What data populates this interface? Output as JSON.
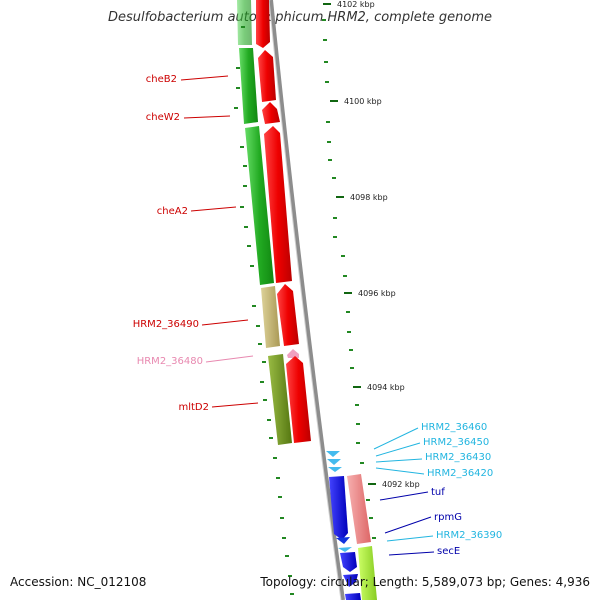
{
  "title": "Desulfobacterium autotrophicum HRM2, complete genome",
  "footer": {
    "accession": "Accession: NC_012108",
    "topology": "Topology: circular; Length: 5,589,073 bp; Genes: 4,936"
  },
  "ticks": [
    {
      "label": "4102 kbp"
    },
    {
      "label": "4100 kbp"
    },
    {
      "label": "4098 kbp"
    },
    {
      "label": "4096 kbp"
    },
    {
      "label": "4094 kbp"
    },
    {
      "label": "4092 kbp"
    }
  ],
  "genes_left": [
    {
      "name": "cheB2",
      "color": "#cc0000"
    },
    {
      "name": "cheW2",
      "color": "#cc0000"
    },
    {
      "name": "cheA2",
      "color": "#cc0000"
    },
    {
      "name": "HRM2_36490",
      "color": "#cc0000"
    },
    {
      "name": "HRM2_36480",
      "color": "#e889b0"
    },
    {
      "name": "mltD2",
      "color": "#cc0000"
    }
  ],
  "genes_right": [
    {
      "name": "HRM2_36460",
      "color": "#22b5e0"
    },
    {
      "name": "HRM2_36450",
      "color": "#22b5e0"
    },
    {
      "name": "HRM2_36430",
      "color": "#22b5e0"
    },
    {
      "name": "HRM2_36420",
      "color": "#22b5e0"
    },
    {
      "name": "tuf",
      "color": "#0000aa"
    },
    {
      "name": "rpmG",
      "color": "#0000aa"
    },
    {
      "name": "HRM2_36390",
      "color": "#22b5e0"
    },
    {
      "name": "secE",
      "color": "#0000aa"
    }
  ],
  "colors": {
    "forward_cds": "#ee1111",
    "reverse_cds": "#1111dd",
    "cog_green": "#33bb33",
    "cog_khaki": "#c8bb77",
    "cog_olive": "#7a9a2a",
    "cog_salmon": "#ee8888",
    "backbone": "#888888",
    "tick": "#116611"
  }
}
